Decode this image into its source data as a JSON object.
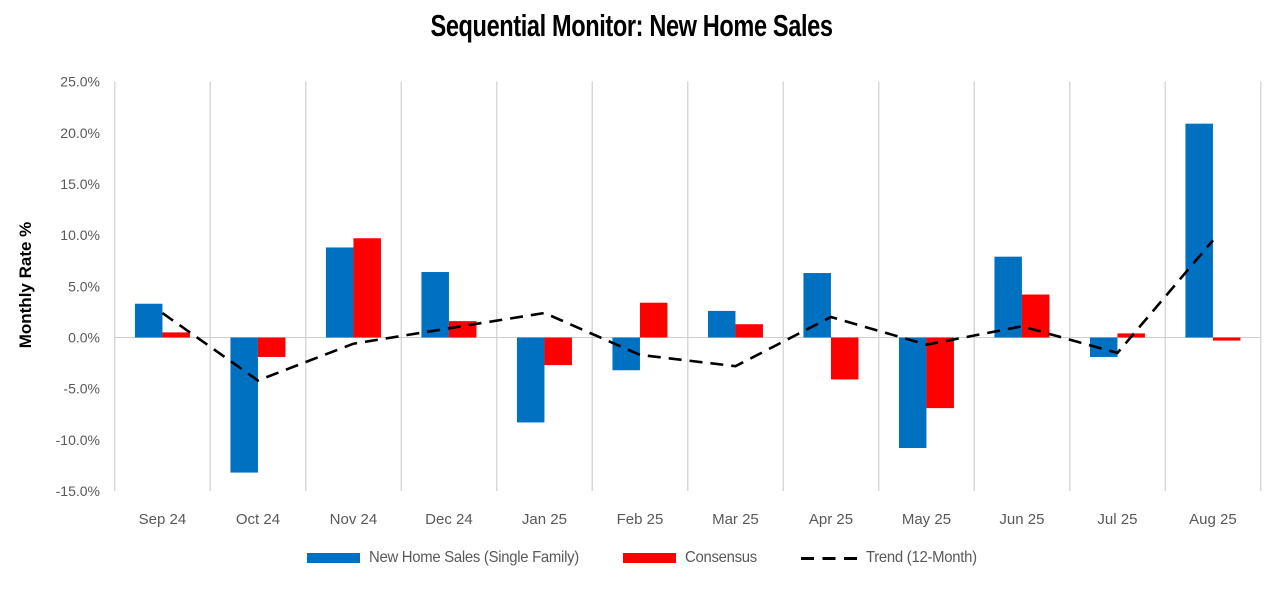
{
  "title": "Sequential Monitor: New Home Sales",
  "y_axis_title": "Monthly Rate %",
  "legend": {
    "items": [
      {
        "label": "New Home Sales (Single Family)",
        "swatch": "blue-bar-swatch",
        "color": "#0070C0"
      },
      {
        "label": "Consensus",
        "swatch": "red-bar-swatch",
        "color": "#FF0000"
      },
      {
        "label": "Trend (12-Month)",
        "swatch": "black-dash-swatch",
        "color": "#000000"
      }
    ],
    "position": "bottom-center"
  },
  "colors": {
    "new_home_sales_blue": "#0070C0",
    "consensus_red": "#FF0000",
    "trend_black": "#000000",
    "gridline_gray": "#D9D9D9",
    "zero_line_gray": "#CFCFCF",
    "tick_label_gray": "#595959",
    "background": "#FFFFFF"
  },
  "chart_data": {
    "type": "bar",
    "title": "Sequential Monitor: New Home Sales",
    "xlabel": "",
    "ylabel": "Monthly Rate %",
    "categories": [
      "Sep 24",
      "Oct 24",
      "Nov 24",
      "Dec 24",
      "Jan 25",
      "Feb 25",
      "Mar 25",
      "Apr 25",
      "May 25",
      "Jun 25",
      "Jul 25",
      "Aug 25"
    ],
    "series": [
      {
        "name": "New Home Sales (Single Family)",
        "type": "bar",
        "color": "#0070C0",
        "values": [
          3.3,
          -13.2,
          8.8,
          6.4,
          -8.3,
          -3.2,
          2.6,
          6.3,
          -10.8,
          7.9,
          -1.9,
          20.9
        ]
      },
      {
        "name": "Consensus",
        "type": "bar",
        "color": "#FF0000",
        "values": [
          0.5,
          -1.9,
          9.7,
          1.6,
          -2.7,
          3.4,
          1.3,
          -4.1,
          -6.9,
          4.2,
          0.4,
          -0.3
        ]
      },
      {
        "name": "Trend (12-Month)",
        "type": "line",
        "dashed": true,
        "color": "#000000",
        "values": [
          2.4,
          -4.2,
          -0.6,
          0.9,
          2.4,
          -1.7,
          -2.8,
          2.0,
          -0.7,
          1.1,
          -1.5,
          9.5
        ]
      }
    ],
    "ylim": [
      -15,
      25
    ],
    "ytick_step": 5,
    "y_tick_labels": [
      "25.0%",
      "20.0%",
      "15.0%",
      "10.0%",
      "5.0%",
      "0.0%",
      "-5.0%",
      "-10.0%",
      "-15.0%"
    ],
    "units": "percent",
    "grid": "vertical-only",
    "horizontal_gridlines": "zero-line-only",
    "legend_position": "bottom"
  }
}
